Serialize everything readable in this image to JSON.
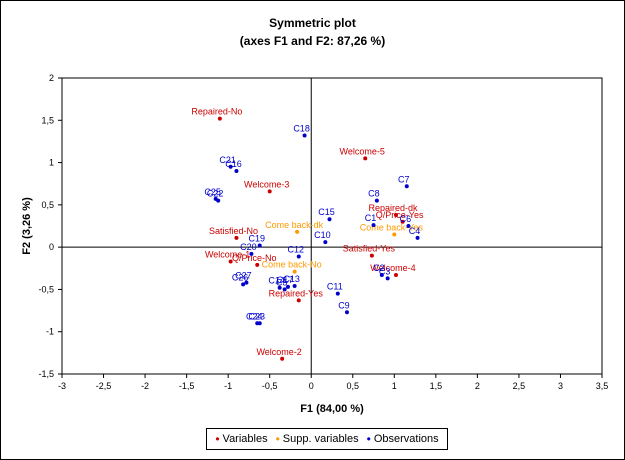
{
  "chart_data": {
    "type": "scatter",
    "title": "Symmetric plot",
    "subtitle": "(axes F1 and F2: 87,26 %)",
    "xlabel": "F1 (84,00 %)",
    "ylabel": "F2 (3,26 %)",
    "xlim": [
      -3,
      3.5
    ],
    "ylim": [
      -1.5,
      2
    ],
    "xticks": [
      "-3",
      "-2,5",
      "-2",
      "-1,5",
      "-1",
      "-0,5",
      "0",
      "0,5",
      "1",
      "1,5",
      "2",
      "2,5",
      "3",
      "3,5"
    ],
    "yticks": [
      "2",
      "1,5",
      "1",
      "0,5",
      "0",
      "-0,5",
      "-1",
      "-1,5"
    ],
    "grid": false,
    "legend_position": "bottom",
    "series": [
      {
        "name": "Variables",
        "color": "#cc0000",
        "points": [
          {
            "label": "Repaired-No",
            "x": -1.1,
            "y": 1.52
          },
          {
            "label": "Welcome-5",
            "x": 0.65,
            "y": 1.05
          },
          {
            "label": "Welcome-3",
            "x": -0.5,
            "y": 0.66
          },
          {
            "label": "Repaired-dk",
            "x": 1.02,
            "y": 0.38
          },
          {
            "label": "Q/Price-Yes",
            "x": 1.1,
            "y": 0.3
          },
          {
            "label": "Satisfied-No",
            "x": -0.9,
            "y": 0.11
          },
          {
            "label": "Satisfied-Yes",
            "x": 0.73,
            "y": -0.1
          },
          {
            "label": "Welcome-1",
            "x": -0.97,
            "y": -0.17
          },
          {
            "label": "Q/Price-No",
            "x": -0.65,
            "y": -0.21
          },
          {
            "label": "Welcome-4",
            "x": 1.02,
            "y": -0.33
          },
          {
            "label": "Repaired-Yes",
            "x": -0.15,
            "y": -0.63
          },
          {
            "label": "Welcome-2",
            "x": -0.35,
            "y": -1.32
          }
        ]
      },
      {
        "name": "Supp. variables",
        "color": "#ff9900",
        "points": [
          {
            "label": "Come back-dk",
            "x": -0.17,
            "y": 0.18
          },
          {
            "label": "Come back-Yes",
            "x": 1.0,
            "y": 0.15
          },
          {
            "label": "Come back-No",
            "x": -0.2,
            "y": -0.29
          }
        ]
      },
      {
        "name": "Observations",
        "color": "#0000cc",
        "points": [
          {
            "label": "C18",
            "x": -0.08,
            "y": 1.32
          },
          {
            "label": "C21",
            "x": -0.97,
            "y": 0.95
          },
          {
            "label": "C16",
            "x": -0.9,
            "y": 0.9
          },
          {
            "label": "C7",
            "x": 1.15,
            "y": 0.72
          },
          {
            "label": "C25",
            "x": -1.15,
            "y": 0.57
          },
          {
            "label": "C22",
            "x": -1.12,
            "y": 0.55
          },
          {
            "label": "C8",
            "x": 0.79,
            "y": 0.55
          },
          {
            "label": "C15",
            "x": 0.22,
            "y": 0.33
          },
          {
            "label": "C1",
            "x": 0.75,
            "y": 0.26
          },
          {
            "label": "C6",
            "x": 1.17,
            "y": 0.25
          },
          {
            "label": "C4",
            "x": 1.28,
            "y": 0.11
          },
          {
            "label": "C10",
            "x": 0.17,
            "y": 0.06
          },
          {
            "label": "C19",
            "x": -0.62,
            "y": 0.02
          },
          {
            "label": "C20",
            "x": -0.72,
            "y": -0.08
          },
          {
            "label": "C12",
            "x": -0.15,
            "y": -0.11
          },
          {
            "label": "C2",
            "x": 0.85,
            "y": -0.33
          },
          {
            "label": "C3",
            "x": 0.92,
            "y": -0.37
          },
          {
            "label": "C26",
            "x": -0.82,
            "y": -0.44
          },
          {
            "label": "C27",
            "x": -0.78,
            "y": -0.42
          },
          {
            "label": "C14",
            "x": -0.38,
            "y": -0.48
          },
          {
            "label": "C17",
            "x": -0.28,
            "y": -0.47
          },
          {
            "label": "C5",
            "x": -0.32,
            "y": -0.5
          },
          {
            "label": "C13",
            "x": -0.2,
            "y": -0.46
          },
          {
            "label": "C11",
            "x": 0.32,
            "y": -0.55
          },
          {
            "label": "C9",
            "x": 0.43,
            "y": -0.77
          },
          {
            "label": "C24",
            "x": -0.65,
            "y": -0.9
          },
          {
            "label": "C23",
            "x": -0.62,
            "y": -0.9
          }
        ]
      }
    ]
  }
}
